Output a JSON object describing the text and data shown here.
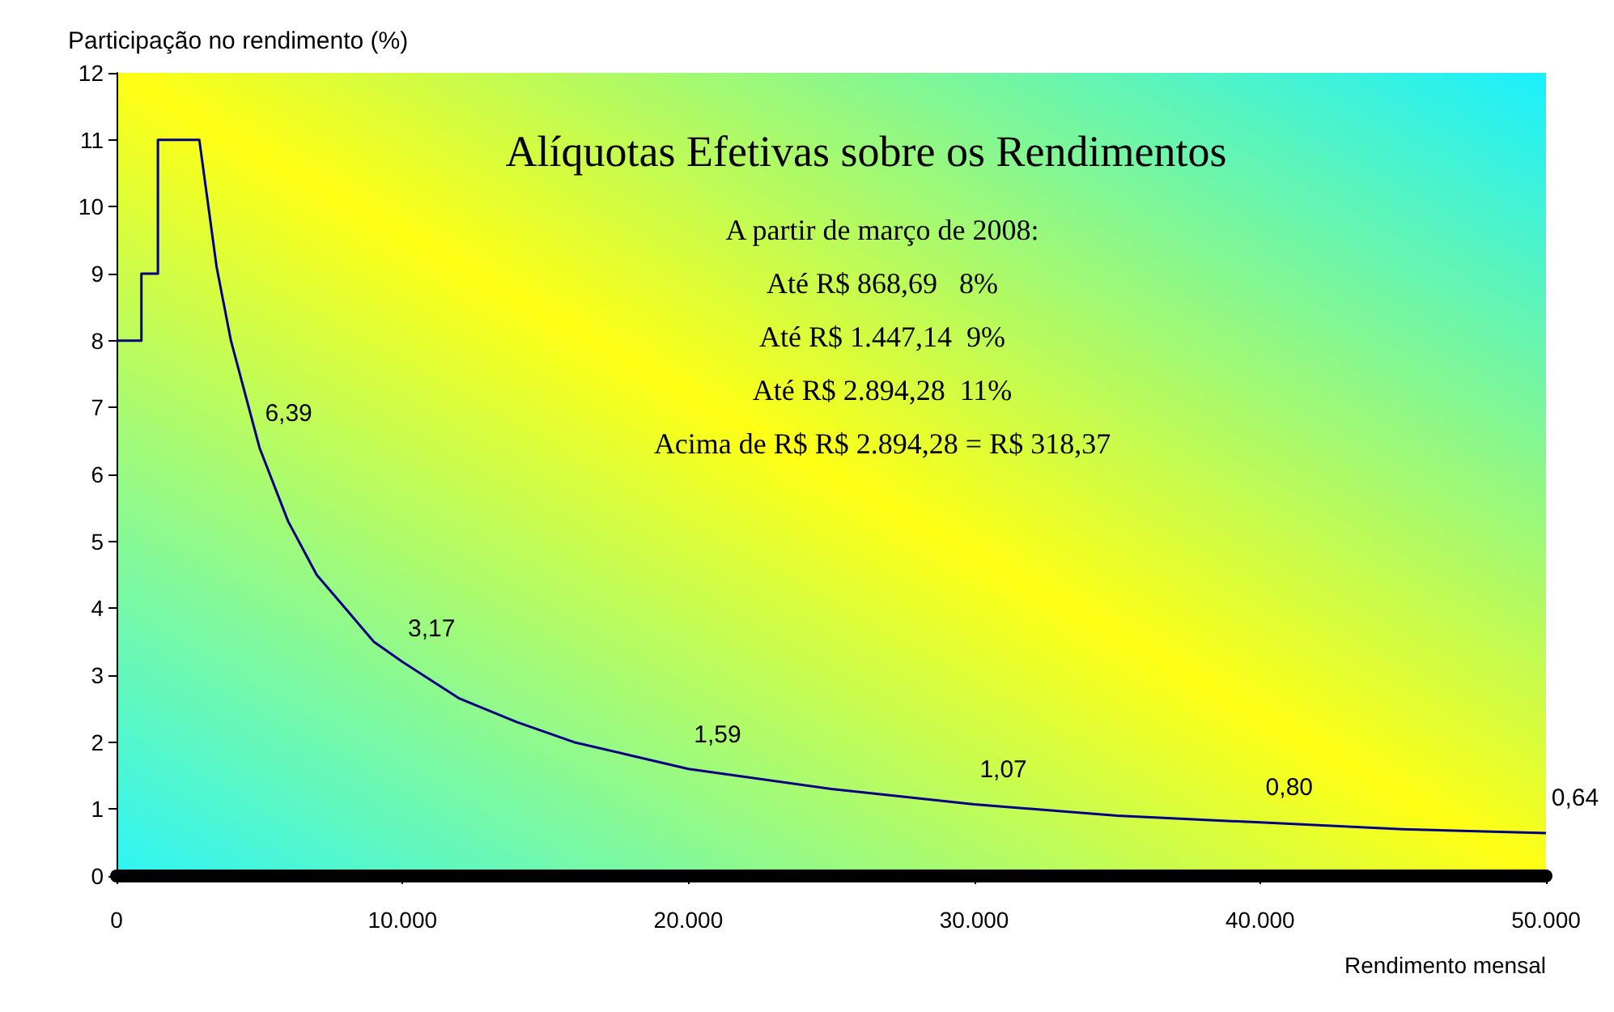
{
  "chart_data": {
    "type": "line",
    "title": "Alíquotas Efetivas sobre os Rendimentos",
    "xlabel": "Rendimento mensal",
    "ylabel": "Participação no rendimento (%)",
    "series": [
      {
        "color": "#000080",
        "x": [
          0,
          869,
          869,
          1447,
          1447,
          2894,
          3500,
          4000,
          5000,
          6000,
          7000,
          8000,
          9000,
          10000,
          12000,
          14000,
          16000,
          18000,
          20000,
          25000,
          30000,
          35000,
          40000,
          45000,
          50000
        ],
        "values": [
          8,
          8,
          9,
          9,
          11,
          11,
          9.1,
          8,
          6.4,
          5.3,
          4.5,
          4,
          3.5,
          3.2,
          2.65,
          2.3,
          2,
          1.8,
          1.6,
          1.3,
          1.07,
          0.9,
          0.8,
          0.7,
          0.64
        ]
      }
    ],
    "xlim": [
      0,
      50000
    ],
    "xticks": [
      {
        "value": 0,
        "label": "0"
      },
      {
        "value": 10000,
        "label": "10.000"
      },
      {
        "value": 20000,
        "label": "20.000"
      },
      {
        "value": 30000,
        "label": "30.000"
      },
      {
        "value": 40000,
        "label": "40.000"
      },
      {
        "value": 50000,
        "label": "50.000"
      }
    ],
    "ylim": [
      0,
      12
    ],
    "yticks": [
      0,
      1,
      2,
      3,
      4,
      5,
      6,
      7,
      8,
      9,
      10,
      11,
      12
    ],
    "grid": false,
    "marker": "none",
    "line_style": "solid",
    "annotations": [
      "A partir de março de 2008:",
      "Até R$ 868,69   8%",
      "Até R$ 1.447,14  9%",
      "Até R$ 2.894,28  11%",
      "Acima de R$ R$ 2.894,28 = R$ 318,37",
      {
        "text": "6,39",
        "x": 5000,
        "y": 6.39
      },
      {
        "text": "3,17",
        "x": 10000,
        "y": 3.17
      },
      {
        "text": "1,59",
        "x": 20000,
        "y": 1.59
      },
      {
        "text": "1,07",
        "x": 30000,
        "y": 1.07
      },
      {
        "text": "0,80",
        "x": 40000,
        "y": 0.8
      },
      {
        "text": "0,64",
        "x": 50000,
        "y": 0.64
      }
    ]
  }
}
